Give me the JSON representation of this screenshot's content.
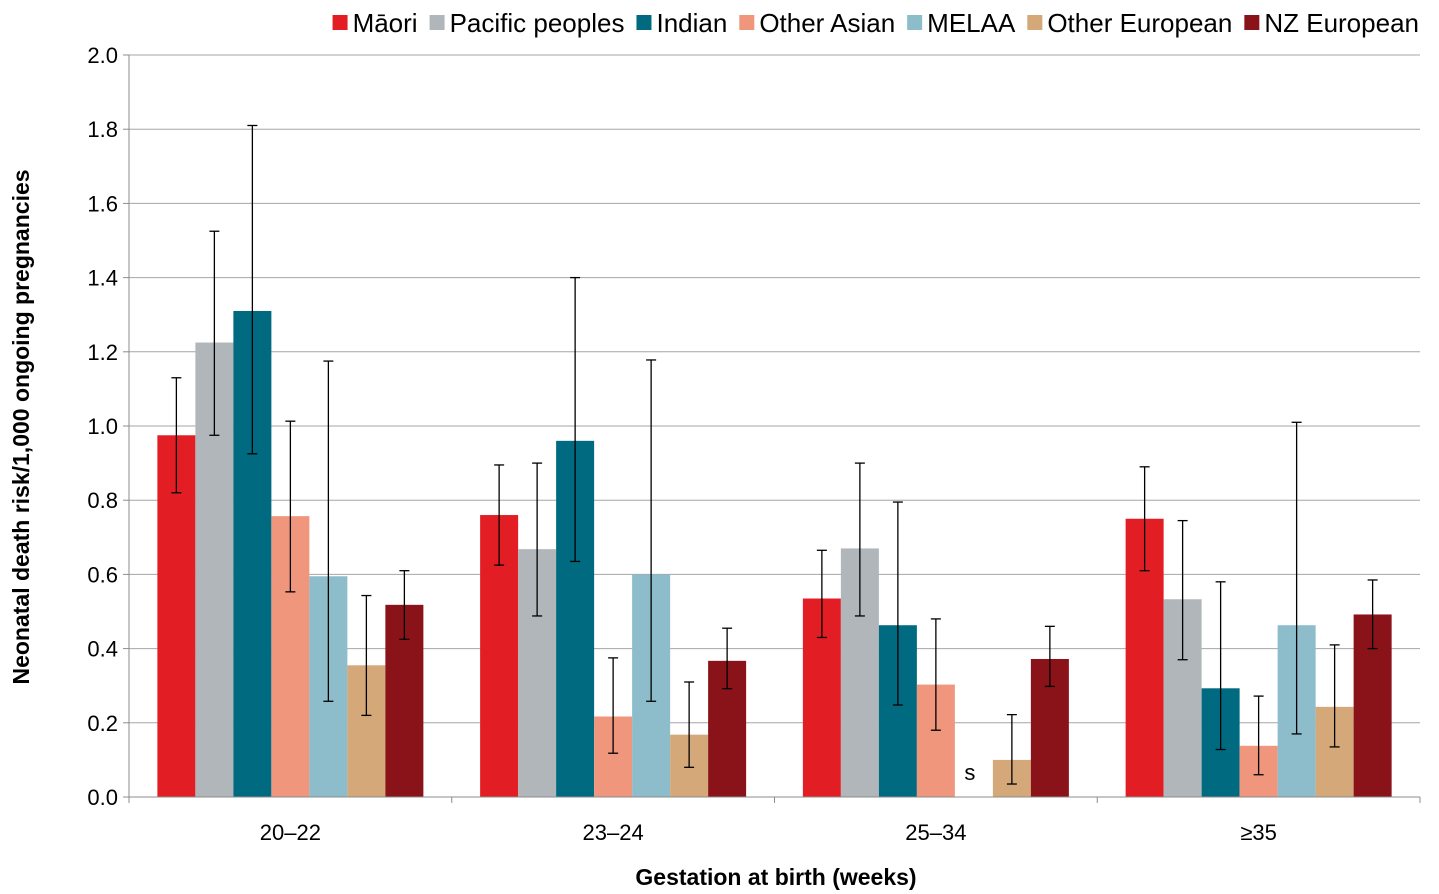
{
  "chart_data": {
    "type": "bar",
    "title": "",
    "xlabel": "Gestation at birth (weeks)",
    "ylabel": "Neonatal death risk/1,000 ongoing pregnancies",
    "ylim": [
      0,
      2.0
    ],
    "yticks": [
      "0.0",
      "0.2",
      "0.4",
      "0.6",
      "0.8",
      "1.0",
      "1.2",
      "1.4",
      "1.6",
      "1.8",
      "2.0"
    ],
    "grid": true,
    "legend_position": "top",
    "categories": [
      "20–22",
      "23–24",
      "25–34",
      "≥35"
    ],
    "series": [
      {
        "name": "Māori",
        "color": "#e31d24",
        "values": [
          0.975,
          0.76,
          0.535,
          0.75
        ],
        "ci_low": [
          0.82,
          0.625,
          0.43,
          0.61
        ],
        "ci_high": [
          1.13,
          0.895,
          0.665,
          0.89
        ]
      },
      {
        "name": "Pacific peoples",
        "color": "#b1b6bb",
        "values": [
          1.225,
          0.668,
          0.67,
          0.533
        ],
        "ci_low": [
          0.975,
          0.488,
          0.488,
          0.37
        ],
        "ci_high": [
          1.525,
          0.9,
          0.9,
          0.745
        ]
      },
      {
        "name": "Indian",
        "color": "#006a80",
        "values": [
          1.31,
          0.96,
          0.463,
          0.293
        ],
        "ci_low": [
          0.925,
          0.635,
          0.248,
          0.128
        ],
        "ci_high": [
          1.81,
          1.4,
          0.795,
          0.58
        ]
      },
      {
        "name": "Other Asian",
        "color": "#f0967c",
        "values": [
          0.757,
          0.217,
          0.303,
          0.138
        ],
        "ci_low": [
          0.553,
          0.118,
          0.18,
          0.06
        ],
        "ci_high": [
          1.013,
          0.375,
          0.48,
          0.272
        ]
      },
      {
        "name": "MELAA",
        "color": "#8dbccb",
        "values": [
          0.595,
          0.6,
          null,
          0.463
        ],
        "ci_low": [
          0.258,
          0.258,
          null,
          0.17
        ],
        "ci_high": [
          1.175,
          1.178,
          null,
          1.01
        ]
      },
      {
        "name": "Other European",
        "color": "#d4a878",
        "values": [
          0.355,
          0.168,
          0.1,
          0.243
        ],
        "ci_low": [
          0.22,
          0.08,
          0.035,
          0.135
        ],
        "ci_high": [
          0.543,
          0.31,
          0.222,
          0.41
        ]
      },
      {
        "name": "NZ European",
        "color": "#8a1219",
        "values": [
          0.518,
          0.367,
          0.372,
          0.492
        ],
        "ci_low": [
          0.425,
          0.292,
          0.298,
          0.4
        ],
        "ci_high": [
          0.61,
          0.455,
          0.46,
          0.585
        ]
      }
    ],
    "annotations": [
      {
        "category": "25–34",
        "series": "MELAA",
        "text": "s"
      }
    ]
  }
}
